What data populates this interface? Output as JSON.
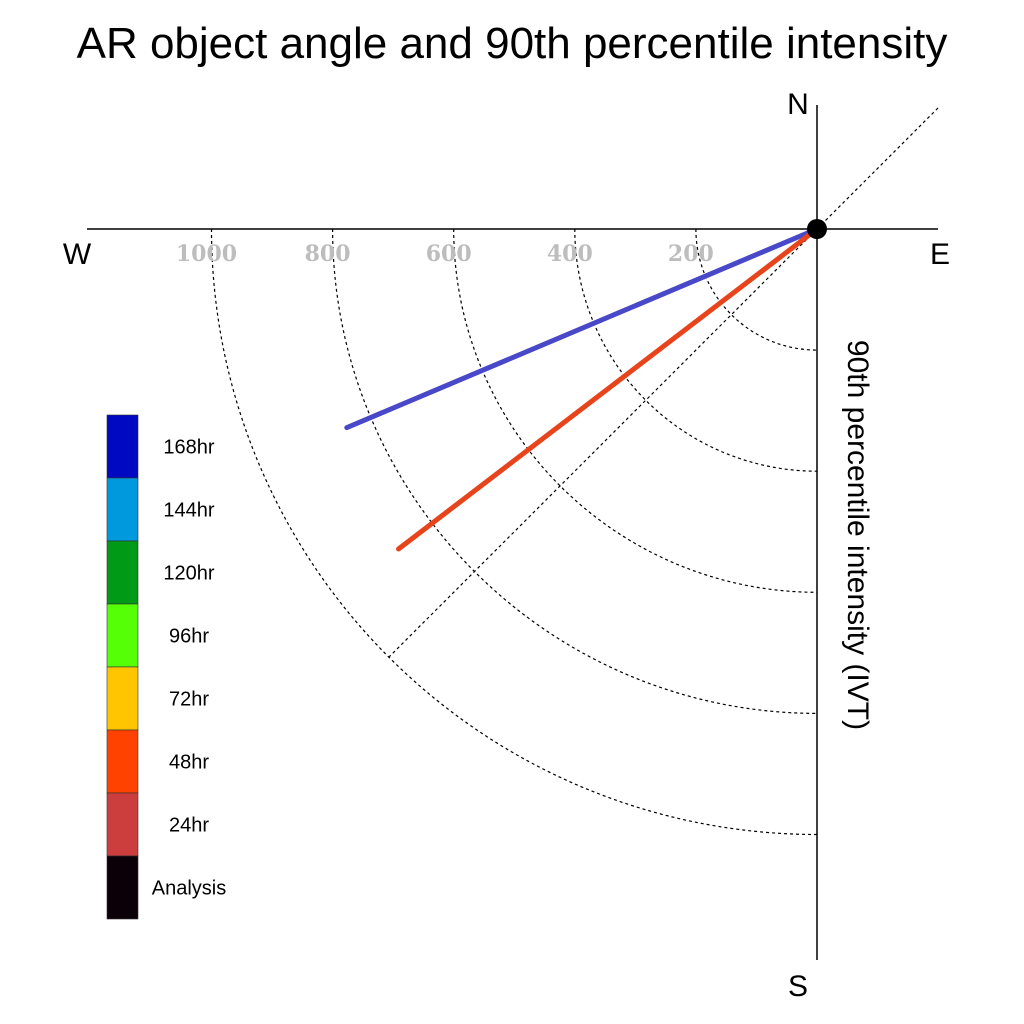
{
  "title": "AR object angle and 90th percentile intensity",
  "directions": {
    "north": "N",
    "south": "S",
    "east": "E",
    "west": "W"
  },
  "axis_label": "90th percentile intensity (IVT)",
  "chart_data": {
    "type": "polar-line",
    "title": "AR object angle and 90th percentile intensity",
    "radial_label": "90th percentile intensity (IVT)",
    "radial_ticks": [
      200,
      400,
      600,
      800,
      1000
    ],
    "radial_max": 1200,
    "angle_reference": "degrees clockwise from West (W = 0, S = 90)",
    "grid": true,
    "legend": {
      "position": "left",
      "entries": [
        {
          "label": "168hr",
          "color": "#0009c2"
        },
        {
          "label": "144hr",
          "color": "#0099dd"
        },
        {
          "label": "120hr",
          "color": "#009a16"
        },
        {
          "label": "96hr",
          "color": "#55ff05"
        },
        {
          "label": "72hr",
          "color": "#ffc500"
        },
        {
          "label": "48hr",
          "color": "#ff4200"
        },
        {
          "label": "24hr",
          "color": "#cc3e3e"
        },
        {
          "label": "Analysis",
          "color": "#0c0008"
        }
      ]
    },
    "series": [
      {
        "name": "168hr",
        "color": "#4848c8",
        "angle_deg": 22.9,
        "intensity": 843
      },
      {
        "name": "48hr",
        "color": "#e8441c",
        "angle_deg": 37.4,
        "intensity": 870
      }
    ]
  }
}
